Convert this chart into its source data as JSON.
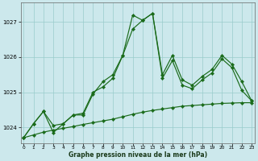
{
  "xlabel": "Graphe pression niveau de la mer (hPa)",
  "background_color": "#cce8ec",
  "grid_color": "#99cccc",
  "line_color": "#1a6b1a",
  "hours": [
    0,
    1,
    2,
    3,
    4,
    5,
    6,
    7,
    8,
    9,
    10,
    11,
    12,
    13,
    14,
    15,
    16,
    17,
    18,
    19,
    20,
    21,
    22,
    23
  ],
  "s1": [
    1023.7,
    1024.1,
    1024.45,
    1023.85,
    1024.1,
    1024.35,
    1024.35,
    1024.95,
    1025.3,
    1025.5,
    1026.05,
    1027.2,
    1027.05,
    1027.25,
    1025.5,
    1026.05,
    1025.35,
    1025.2,
    1025.45,
    1025.65,
    1026.05,
    1025.8,
    1025.3,
    1024.75
  ],
  "s2": [
    1023.7,
    1024.1,
    1024.45,
    1024.05,
    1024.1,
    1024.35,
    1024.4,
    1025.0,
    1025.15,
    1025.4,
    1026.05,
    1026.8,
    1027.05,
    1027.25,
    1025.4,
    1025.9,
    1025.2,
    1025.1,
    1025.35,
    1025.55,
    1025.95,
    1025.7,
    1025.05,
    1024.75
  ],
  "s3": [
    1023.7,
    1023.78,
    1023.86,
    1023.92,
    1023.97,
    1024.02,
    1024.08,
    1024.13,
    1024.18,
    1024.23,
    1024.3,
    1024.37,
    1024.43,
    1024.48,
    1024.52,
    1024.56,
    1024.6,
    1024.62,
    1024.64,
    1024.66,
    1024.68,
    1024.69,
    1024.7,
    1024.7
  ],
  "ylim_min": 1023.55,
  "ylim_max": 1027.55,
  "yticks": [
    1024,
    1025,
    1026,
    1027
  ],
  "xticks": [
    0,
    1,
    2,
    3,
    4,
    5,
    6,
    7,
    8,
    9,
    10,
    11,
    12,
    13,
    14,
    15,
    16,
    17,
    18,
    19,
    20,
    21,
    22,
    23
  ]
}
